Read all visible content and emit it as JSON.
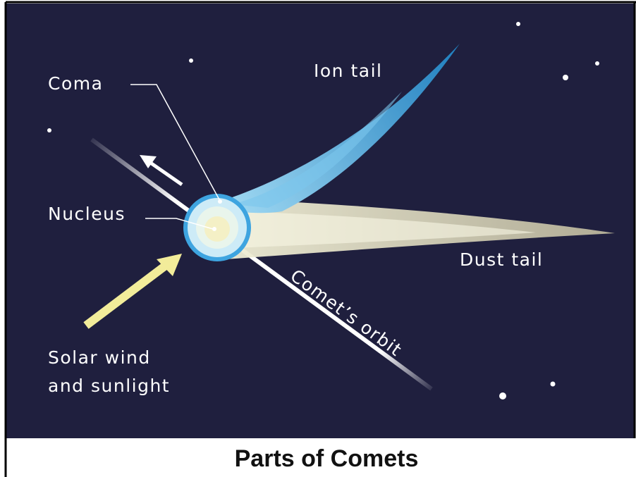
{
  "labels": {
    "coma": "Coma",
    "ion_tail": "Ion tail",
    "nucleus": "Nucleus",
    "dust_tail": "Dust tail",
    "comets_orbit": "Comet’s orbit",
    "solar_wind": [
      "Solar wind",
      "and sunlight"
    ]
  },
  "caption": "Parts of Comets"
}
